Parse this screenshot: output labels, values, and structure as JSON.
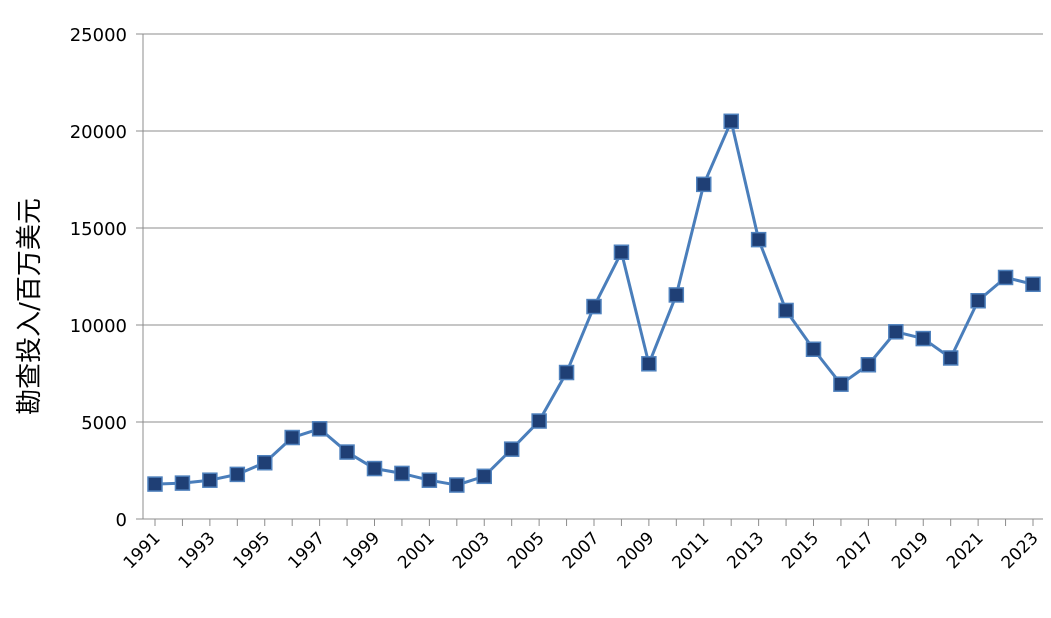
{
  "chart_data": {
    "type": "line",
    "title": "",
    "xlabel": "",
    "ylabel": "勘查投入/百万美元",
    "x": [
      1991,
      1992,
      1993,
      1994,
      1995,
      1996,
      1997,
      1998,
      1999,
      2000,
      2001,
      2002,
      2003,
      2004,
      2005,
      2006,
      2007,
      2008,
      2009,
      2010,
      2011,
      2012,
      2013,
      2014,
      2015,
      2016,
      2017,
      2018,
      2019,
      2020,
      2021,
      2022,
      2023
    ],
    "x_tick_labels": [
      "1991",
      "1993",
      "1995",
      "1997",
      "1999",
      "2001",
      "2003",
      "2005",
      "2007",
      "2009",
      "2011",
      "2013",
      "2015",
      "2017",
      "2019",
      "2021",
      "2023"
    ],
    "y_tick_labels": [
      "0",
      "5000",
      "10000",
      "15000",
      "20000",
      "25000"
    ],
    "ylim": [
      0,
      25000
    ],
    "grid": true,
    "series": [
      {
        "values": [
          1800,
          1850,
          2000,
          2300,
          2900,
          4200,
          4650,
          3450,
          2600,
          2350,
          2000,
          1750,
          2200,
          3600,
          5050,
          7550,
          10950,
          13750,
          8000,
          11550,
          17250,
          20500,
          14400,
          10750,
          8750,
          6950,
          7950,
          9650,
          9300,
          8300,
          11250,
          12450,
          12100
        ],
        "color": "#4a7ebb",
        "marker_fill": "#1f3f75",
        "marker_stroke": "#4f81bd"
      }
    ]
  }
}
